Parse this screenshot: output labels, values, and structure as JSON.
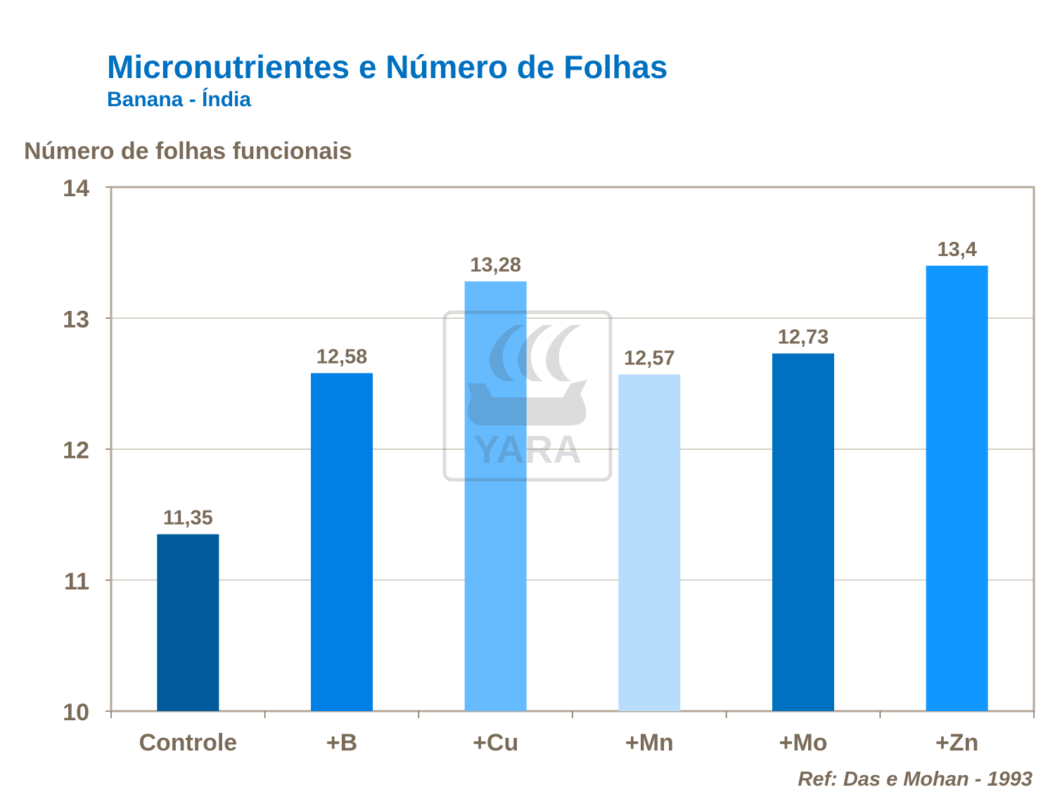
{
  "title": "Micronutrientes e Número de Folhas",
  "subtitle": "Banana -  Índia",
  "reference": "Ref: Das e Mohan - 1993",
  "watermark": "YARA",
  "chart_data": {
    "type": "bar",
    "title": "Micronutrientes e Número de Folhas",
    "ylabel": "Número de folhas funcionais",
    "xlabel": "",
    "ylim": [
      10,
      14
    ],
    "yticks": [
      "10",
      "11",
      "12",
      "13",
      "14"
    ],
    "grid": true,
    "categories": [
      "Controle",
      "+B",
      "+Cu",
      "+Mn",
      "+Mo",
      "+Zn"
    ],
    "values": [
      11.35,
      12.58,
      13.28,
      12.57,
      12.73,
      13.4
    ],
    "data_labels": [
      "11,35",
      "12,58",
      "13,28",
      "12,57",
      "12,73",
      "13,4"
    ],
    "colors": [
      "#005a9c",
      "#0080e4",
      "#66bbff",
      "#b8ddfc",
      "#0070c0",
      "#1197ff"
    ]
  }
}
